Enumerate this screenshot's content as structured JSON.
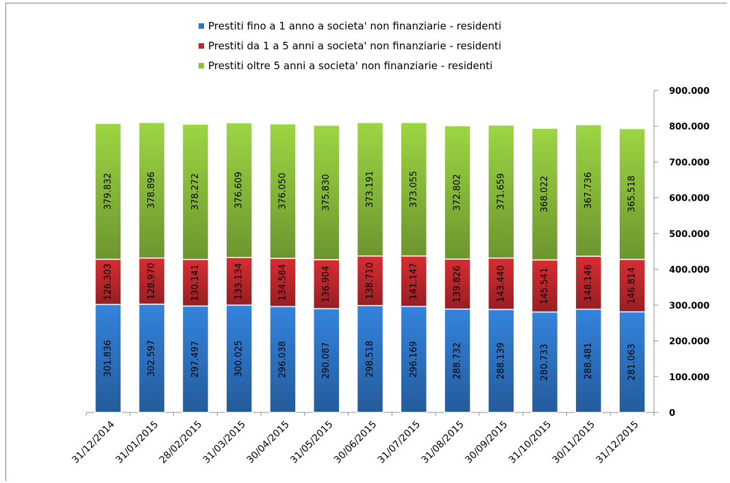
{
  "chart_data": {
    "type": "bar",
    "stacked": true,
    "categories": [
      "31/12/2014",
      "31/01/2015",
      "28/02/2015",
      "31/03/2015",
      "30/04/2015",
      "31/05/2015",
      "30/06/2015",
      "31/07/2015",
      "31/08/2015",
      "30/09/2015",
      "31/10/2015",
      "30/11/2015",
      "31/12/2015"
    ],
    "series": [
      {
        "name": "Prestiti fino a 1 anno a societa' non finanziarie - residenti",
        "color": "#2e75c5",
        "values": [
          301836,
          302597,
          297497,
          300025,
          296038,
          290087,
          298518,
          296169,
          288732,
          288139,
          280733,
          288481,
          281063
        ],
        "labels": [
          "301.836",
          "302.597",
          "297.497",
          "300.025",
          "296.038",
          "290.087",
          "298.518",
          "296.169",
          "288.732",
          "288.139",
          "280.733",
          "288.481",
          "281.063"
        ]
      },
      {
        "name": "Prestiti da 1 a 5 anni a societa' non finanziarie - residenti",
        "color": "#c0282d",
        "values": [
          126303,
          128970,
          130141,
          133134,
          134584,
          136904,
          138710,
          141147,
          139826,
          143440,
          145541,
          148146,
          146814
        ],
        "labels": [
          "126.303",
          "128.970",
          "130.141",
          "133.134",
          "134.584",
          "136.904",
          "138.710",
          "141.147",
          "139.826",
          "143.440",
          "145.541",
          "148.146",
          "146.814"
        ]
      },
      {
        "name": "Prestiti oltre 5 anni a societa' non finanziarie - residenti",
        "color": "#8cbf3c",
        "values": [
          379832,
          378896,
          378272,
          376609,
          376050,
          375830,
          373191,
          373055,
          372802,
          371659,
          368022,
          367736,
          365518
        ],
        "labels": [
          "379.832",
          "378.896",
          "378.272",
          "376.609",
          "376.050",
          "375.830",
          "373.191",
          "373.055",
          "372.802",
          "371.659",
          "368.022",
          "367.736",
          "365.518"
        ]
      }
    ],
    "y_axis": {
      "position": "right",
      "ylim": [
        0,
        900000
      ],
      "ticks": [
        0,
        100000,
        200000,
        300000,
        400000,
        500000,
        600000,
        700000,
        800000,
        900000
      ],
      "tick_labels": [
        "0",
        "100.000",
        "200.000",
        "300.000",
        "400.000",
        "500.000",
        "600.000",
        "700.000",
        "800.000",
        "900.000"
      ]
    },
    "grid": false,
    "legend": "top-center"
  }
}
